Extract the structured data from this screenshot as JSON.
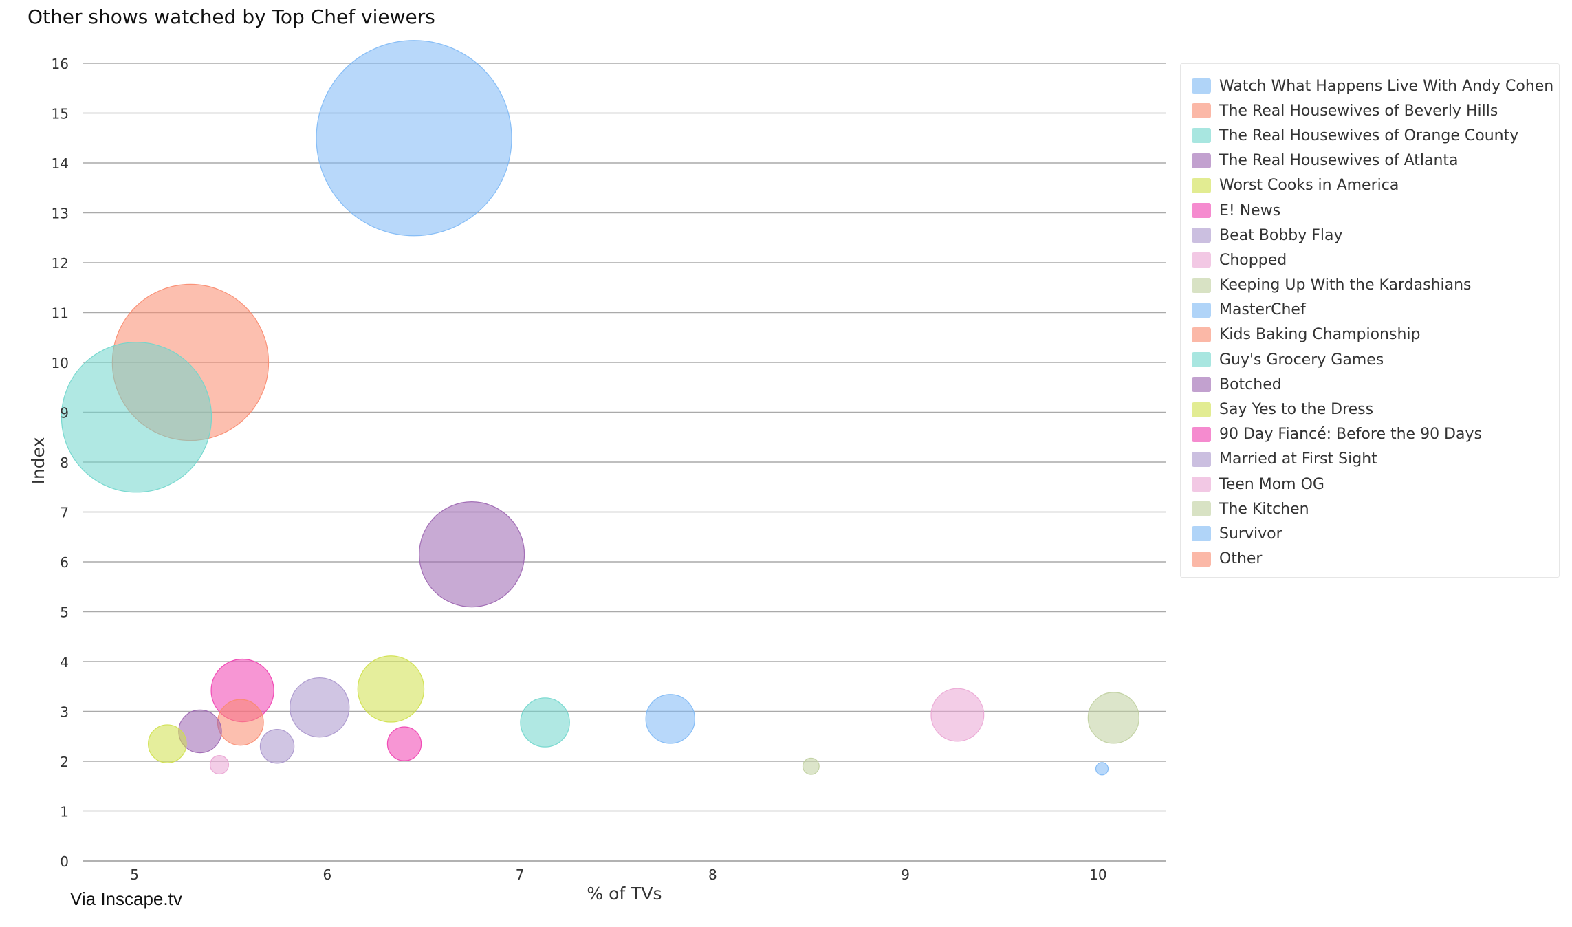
{
  "chart_data": {
    "type": "bubble",
    "title": "Other shows watched by Top Chef viewers",
    "xlabel": "% of TVs",
    "ylabel": "Index",
    "xlim": [
      4.73,
      10.35
    ],
    "ylim": [
      0,
      16
    ],
    "xticks": [
      5,
      6,
      7,
      8,
      9,
      10
    ],
    "yticks": [
      0,
      1,
      2,
      3,
      4,
      5,
      6,
      7,
      8,
      9,
      10,
      11,
      12,
      13,
      14,
      15,
      16
    ],
    "grid": "horizontal",
    "legend_position": "right",
    "series": [
      {
        "name": "Watch What Happens Live With Andy Cohen",
        "x": 6.45,
        "y": 14.5,
        "size": 100,
        "color": "#7db8f5"
      },
      {
        "name": "The Real Housewives of Beverly Hills",
        "x": 5.29,
        "y": 10.0,
        "size": 64,
        "color": "#fa8a6e"
      },
      {
        "name": "The Real Housewives of Orange County",
        "x": 5.01,
        "y": 8.9,
        "size": 59,
        "color": "#6fd6cc"
      },
      {
        "name": "The Real Housewives of Atlanta",
        "x": 6.75,
        "y": 6.15,
        "size": 29,
        "color": "#9b64b0"
      },
      {
        "name": "Worst Cooks in America",
        "x": 6.33,
        "y": 3.45,
        "size": 11.5,
        "color": "#cfe04a"
      },
      {
        "name": "E! News",
        "x": 5.56,
        "y": 3.42,
        "size": 10.3,
        "color": "#f03fb0"
      },
      {
        "name": "Beat Bobby Flay",
        "x": 5.96,
        "y": 3.08,
        "size": 9.2,
        "color": "#a995cc"
      },
      {
        "name": "Chopped",
        "x": 9.27,
        "y": 2.93,
        "size": 7.3,
        "color": "#eaa4d3"
      },
      {
        "name": "Keeping Up With the Kardashians",
        "x": 10.08,
        "y": 2.87,
        "size": 6.8,
        "color": "#bfcf9e"
      },
      {
        "name": "MasterChef",
        "x": 7.78,
        "y": 2.85,
        "size": 6.3,
        "color": "#7db8f5"
      },
      {
        "name": "Kids Baking Championship",
        "x": 5.55,
        "y": 2.78,
        "size": 5.5,
        "color": "#fa8a6e"
      },
      {
        "name": "Guy's Grocery Games",
        "x": 7.13,
        "y": 2.78,
        "size": 6.3,
        "color": "#6fd6cc"
      },
      {
        "name": "Botched",
        "x": 5.34,
        "y": 2.6,
        "size": 4.8,
        "color": "#9b64b0"
      },
      {
        "name": "Say Yes to the Dress",
        "x": 5.17,
        "y": 2.35,
        "size": 3.8,
        "color": "#cfe04a"
      },
      {
        "name": "90 Day Fiancé: Before the 90 Days",
        "x": 6.4,
        "y": 2.35,
        "size": 3.0,
        "color": "#f03fb0"
      },
      {
        "name": "Married at First Sight",
        "x": 5.74,
        "y": 2.3,
        "size": 3.0,
        "color": "#a995cc"
      },
      {
        "name": "Teen Mom OG",
        "x": 5.44,
        "y": 1.93,
        "size": 0.9,
        "color": "#eaa4d3"
      },
      {
        "name": "The Kitchen",
        "x": 8.51,
        "y": 1.9,
        "size": 0.7,
        "color": "#bfcf9e"
      },
      {
        "name": "Survivor",
        "x": 10.02,
        "y": 1.85,
        "size": 0.4,
        "color": "#7db8f5"
      },
      {
        "name": "Other",
        "x": null,
        "y": null,
        "size": null,
        "color": "#fa8a6e"
      }
    ]
  },
  "source": "Via Inscape.tv"
}
